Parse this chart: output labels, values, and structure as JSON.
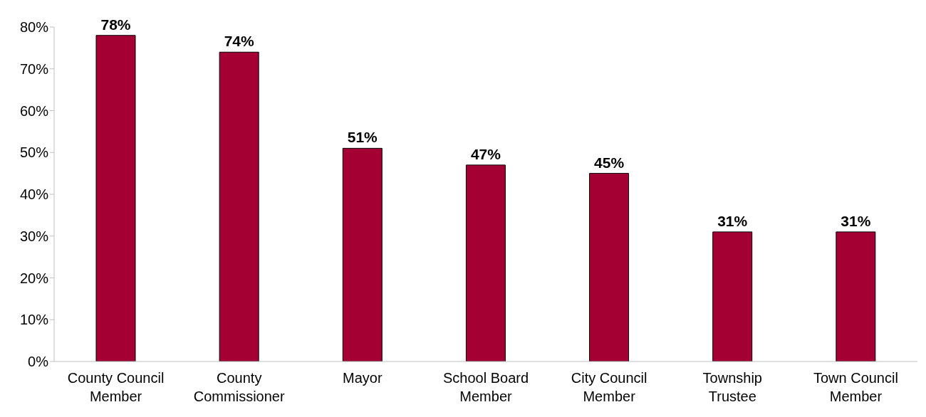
{
  "chart_data": {
    "type": "bar",
    "categories": [
      "County Council Member",
      "County Commissioner",
      "Mayor",
      "School Board Member",
      "City Council Member",
      "Township Trustee",
      "Town Council Member"
    ],
    "values": [
      78,
      74,
      51,
      47,
      45,
      31,
      31
    ],
    "value_labels": [
      "78%",
      "74%",
      "51%",
      "47%",
      "45%",
      "31%",
      "31%"
    ],
    "color": "#a50034",
    "ylim": [
      0,
      80
    ],
    "yticks": [
      {
        "value": 0,
        "label": "0%"
      },
      {
        "value": 10,
        "label": "10%"
      },
      {
        "value": 20,
        "label": "20%"
      },
      {
        "value": 30,
        "label": "30%"
      },
      {
        "value": 40,
        "label": "40%"
      },
      {
        "value": 50,
        "label": "50%"
      },
      {
        "value": 60,
        "label": "60%"
      },
      {
        "value": 70,
        "label": "70%"
      },
      {
        "value": 80,
        "label": "80%"
      }
    ],
    "grid": false,
    "legend": false
  }
}
